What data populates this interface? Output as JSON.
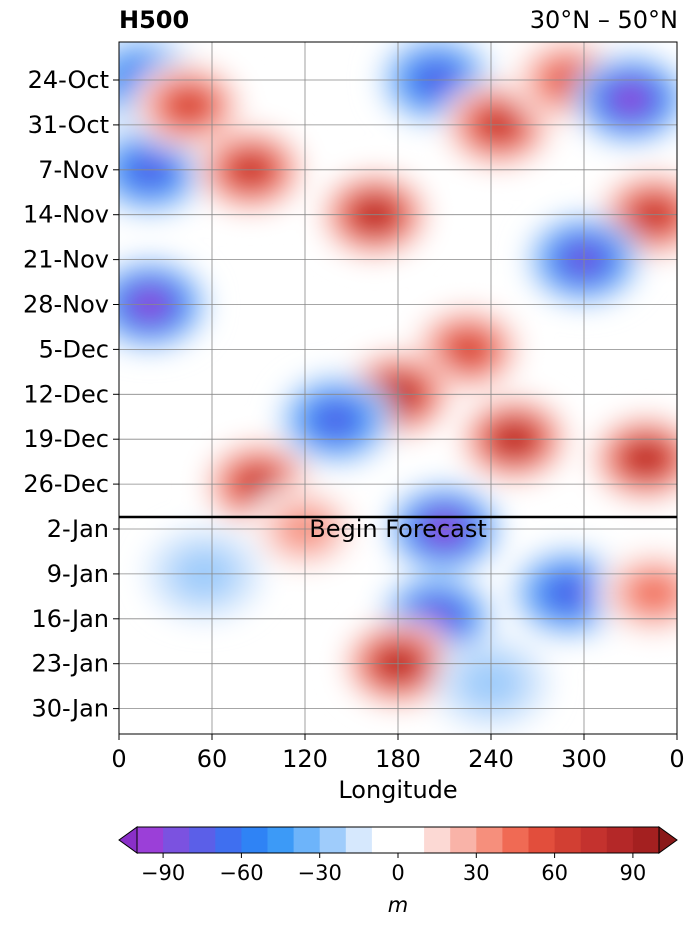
{
  "chart_data": {
    "type": "heatmap",
    "title_left": "H500",
    "title_right": "30°N – 50°N",
    "xlabel": "Longitude",
    "x_ticks": [
      "0",
      "60",
      "120",
      "180",
      "240",
      "300",
      "0"
    ],
    "y_ticks": [
      "24-Oct",
      "31-Oct",
      "7-Nov",
      "14-Nov",
      "21-Nov",
      "28-Nov",
      "5-Dec",
      "12-Dec",
      "19-Dec",
      "26-Dec",
      "2-Jan",
      "9-Jan",
      "16-Jan",
      "23-Jan",
      "30-Jan"
    ],
    "annotation": "Begin Forecast",
    "colorbar": {
      "label": "m",
      "ticks": [
        "−90",
        "−60",
        "−30",
        "0",
        "30",
        "60",
        "90"
      ],
      "levels": [
        -100,
        -90,
        -80,
        -70,
        -60,
        -50,
        -40,
        -30,
        -20,
        -10,
        10,
        20,
        30,
        40,
        50,
        60,
        70,
        80,
        90,
        100
      ],
      "colors": [
        "#9b3fd8",
        "#7b52e0",
        "#5b5fe8",
        "#3f6ff0",
        "#2f83f5",
        "#3c9af7",
        "#6db4fa",
        "#9fccfb",
        "#d6e8fd",
        "#ffffff",
        "#ffffff",
        "#fcd9d4",
        "#f9b3a8",
        "#f68f7c",
        "#f06a54",
        "#e24e3c",
        "#d23f33",
        "#c4322e",
        "#b42828",
        "#a42020"
      ],
      "under_color": "#8a2fc8",
      "over_color": "#8a1818"
    },
    "field_centers": [
      {
        "lon": 15,
        "date": "24-Oct",
        "value": -60
      },
      {
        "lon": 20,
        "date": "7-Nov",
        "value": -75
      },
      {
        "lon": 45,
        "date": "28-Oct",
        "value": 75
      },
      {
        "lon": 85,
        "date": "7-Nov",
        "value": 80
      },
      {
        "lon": 165,
        "date": "14-Nov",
        "value": 95
      },
      {
        "lon": 205,
        "date": "24-Oct",
        "value": -70
      },
      {
        "lon": 245,
        "date": "31-Oct",
        "value": 80
      },
      {
        "lon": 290,
        "date": "24-Oct",
        "value": 65
      },
      {
        "lon": 330,
        "date": "27-Oct",
        "value": -90
      },
      {
        "lon": 345,
        "date": "14-Nov",
        "value": 85
      },
      {
        "lon": 20,
        "date": "28-Nov",
        "value": -95
      },
      {
        "lon": 300,
        "date": "21-Nov",
        "value": -85
      },
      {
        "lon": 225,
        "date": "5-Dec",
        "value": 70
      },
      {
        "lon": 180,
        "date": "12-Dec",
        "value": 90
      },
      {
        "lon": 255,
        "date": "19-Dec",
        "value": 90
      },
      {
        "lon": 340,
        "date": "22-Dec",
        "value": 90
      },
      {
        "lon": 90,
        "date": "26-Dec",
        "value": 80
      },
      {
        "lon": 140,
        "date": "16-Dec",
        "value": -70
      },
      {
        "lon": 210,
        "date": "2-Jan",
        "value": -95
      },
      {
        "lon": 205,
        "date": "16-Jan",
        "value": -85
      },
      {
        "lon": 180,
        "date": "23-Jan",
        "value": 90
      },
      {
        "lon": 120,
        "date": "2-Jan",
        "value": 45
      },
      {
        "lon": 290,
        "date": "12-Jan",
        "value": -75
      },
      {
        "lon": 345,
        "date": "12-Jan",
        "value": 55
      },
      {
        "lon": 55,
        "date": "9-Jan",
        "value": -20
      },
      {
        "lon": 240,
        "date": "26-Jan",
        "value": -25
      }
    ]
  }
}
